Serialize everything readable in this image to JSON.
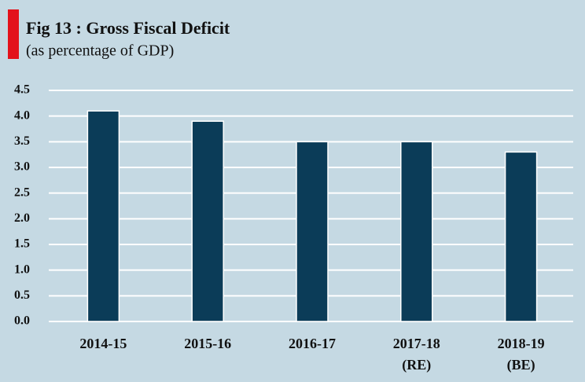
{
  "chart_data": {
    "type": "bar",
    "title": "Fig 13 : Gross Fiscal Deficit",
    "subtitle": "(as percentage of GDP)",
    "categories": [
      [
        "2014-15"
      ],
      [
        "2015-16"
      ],
      [
        "2016-17"
      ],
      [
        "2017-18",
        "(RE)"
      ],
      [
        "2018-19",
        "(BE)"
      ]
    ],
    "values": [
      4.1,
      3.9,
      3.5,
      3.5,
      3.3
    ],
    "color": "#0b3c58",
    "ylim": [
      0,
      4.5
    ],
    "yticks": [
      {
        "value": 0,
        "label": "0.0"
      },
      0.5,
      {
        "value": 1,
        "label": "1.0"
      },
      1.5,
      {
        "value": 2,
        "label": "2.0"
      },
      2.5,
      {
        "value": 3,
        "label": "3.0"
      },
      3.5,
      {
        "value": 4,
        "label": "4.0"
      },
      4.5
    ],
    "grid": true
  }
}
